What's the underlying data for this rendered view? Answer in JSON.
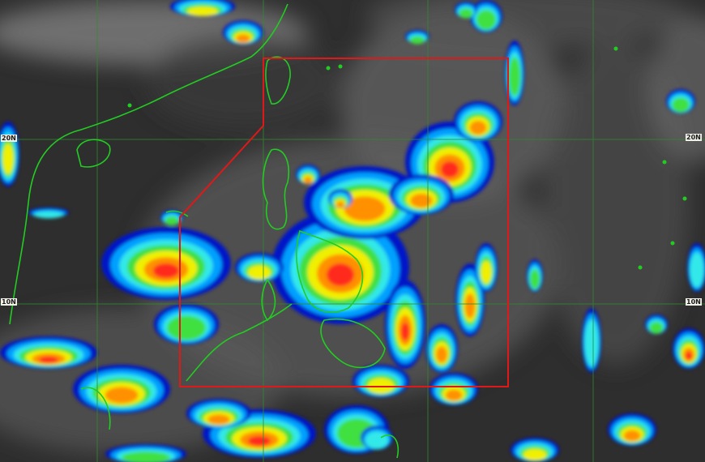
{
  "image": {
    "type": "enhanced infrared satellite image",
    "colors": {
      "background": "#2e2e2e",
      "coastline": "#22cc22",
      "grid": "#2f8a2f",
      "area_box": "#e01818",
      "enhancement_scale": [
        "#0018c8",
        "#00a0ff",
        "#30e8e8",
        "#40e040",
        "#f0f000",
        "#ff9000",
        "#ff2a1a"
      ]
    }
  },
  "labels": {
    "lat_20_left": "20N",
    "lat_10_left": "10N",
    "lat_20_right": "20N",
    "lat_10_right": "10N"
  }
}
